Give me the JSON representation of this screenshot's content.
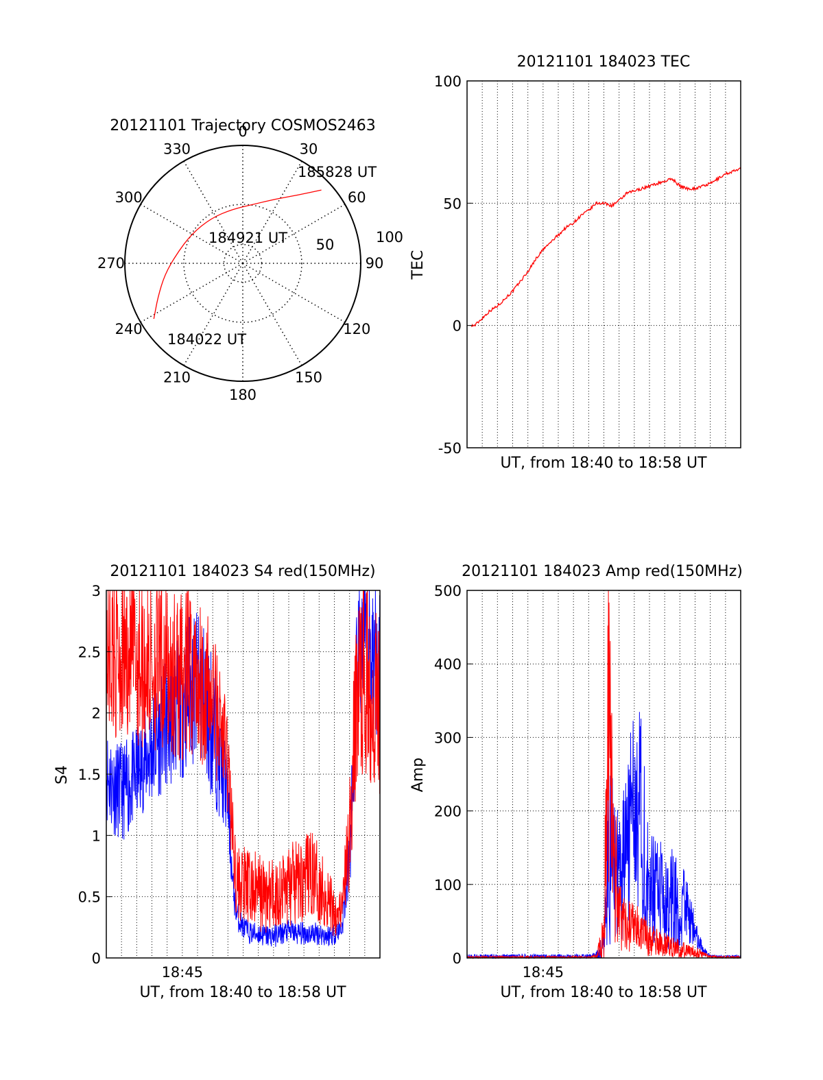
{
  "colors": {
    "red": "#ff0000",
    "blue": "#0000ff",
    "axis": "#000000",
    "grid": "#000000",
    "background": "#ffffff"
  },
  "chart_data": [
    {
      "id": "polar",
      "type": "polar-trajectory",
      "title": "20121101 Trajectory COSMOS2463",
      "azimuth_labels": [
        {
          "az": 0,
          "text": "0"
        },
        {
          "az": 30,
          "text": "30"
        },
        {
          "az": 60,
          "text": "60"
        },
        {
          "az": 90,
          "text": "90"
        },
        {
          "az": 120,
          "text": "120"
        },
        {
          "az": 150,
          "text": "150"
        },
        {
          "az": 180,
          "text": "180"
        },
        {
          "az": 210,
          "text": "210"
        },
        {
          "az": 240,
          "text": "240"
        },
        {
          "az": 270,
          "text": "270"
        },
        {
          "az": 300,
          "text": "300"
        },
        {
          "az": 330,
          "text": "330"
        }
      ],
      "ring_labels": [
        "50",
        "100"
      ],
      "grid": true,
      "series": [
        {
          "color": "#ff0000",
          "points_az_zen": [
            [
              238,
              80
            ],
            [
              248,
              70
            ],
            [
              262,
              60
            ],
            [
              278,
              51
            ],
            [
              300,
              45
            ],
            [
              325,
              42
            ],
            [
              349,
              42
            ],
            [
              11,
              46
            ],
            [
              27,
              55
            ],
            [
              39,
              67
            ],
            [
              47,
              82
            ]
          ]
        }
      ],
      "annotations": [
        {
          "text": "185828 UT",
          "az": 48,
          "zen": 82
        },
        {
          "text": "184921 UT",
          "az": 305,
          "zen": 20
        },
        {
          "text": "184022 UT",
          "az": 232,
          "zen": 82
        }
      ]
    },
    {
      "id": "tec",
      "type": "line",
      "title": "20121101 184023 TEC",
      "xlabel": "UT, from 18:40 to 18:58 UT",
      "ylabel": "TEC",
      "xlim_min": [
        40.0,
        58.0
      ],
      "ylim": [
        -50,
        100
      ],
      "yticks": [
        "-50",
        "0",
        "50",
        "100"
      ],
      "xticks": [],
      "grid": true,
      "series": [
        {
          "color": "#ff0000",
          "x_min": [
            40.3,
            40.5,
            41.0,
            41.5,
            42.0,
            42.5,
            43.0,
            43.5,
            44.0,
            44.5,
            45.0,
            45.5,
            46.0,
            46.5,
            47.0,
            47.5,
            48.0,
            48.5,
            49.0,
            49.5,
            50.0,
            50.5,
            51.0,
            51.5,
            52.0,
            52.5,
            53.0,
            53.5,
            54.0,
            54.5,
            55.0,
            55.5,
            56.0,
            56.5,
            57.0,
            57.5,
            58.0
          ],
          "y": [
            0,
            0,
            3,
            6,
            8,
            11,
            14,
            18,
            22,
            27,
            31,
            34,
            37,
            40,
            42,
            45,
            47,
            50,
            50,
            49,
            51,
            54,
            55,
            56,
            57,
            58,
            59,
            60,
            57,
            56,
            56,
            57,
            58,
            60,
            62,
            63,
            64
          ]
        }
      ]
    },
    {
      "id": "s4",
      "type": "line",
      "title": "20121101 184023 S4 red(150MHz)",
      "xlabel": "UT, from 18:40 to 18:58 UT",
      "ylabel": "S4",
      "xlim_min": [
        40.0,
        58.0
      ],
      "ylim": [
        0,
        3
      ],
      "yticks": [
        "0",
        "0.5",
        "1",
        "1.5",
        "2",
        "2.5",
        "3"
      ],
      "xticks": [
        {
          "x_min": 45,
          "text": "18:45"
        }
      ],
      "grid": true,
      "series": [
        {
          "color": "#0000ff",
          "x_min": [
            40.0,
            40.5,
            41.0,
            41.5,
            42.0,
            42.5,
            43.0,
            43.5,
            44.0,
            44.5,
            45.0,
            45.5,
            46.0,
            46.5,
            47.0,
            47.5,
            48.0,
            48.3,
            48.6,
            49.0,
            49.5,
            50.0,
            50.5,
            51.0,
            51.5,
            52.0,
            52.5,
            53.0,
            53.5,
            54.0,
            54.5,
            55.0,
            55.5,
            56.0,
            56.5,
            57.0,
            57.5,
            58.0
          ],
          "y": [
            1.5,
            1.4,
            1.35,
            1.4,
            1.5,
            1.6,
            1.7,
            1.8,
            1.9,
            2.0,
            2.1,
            2.2,
            2.2,
            2.1,
            1.9,
            1.6,
            1.3,
            0.6,
            0.35,
            0.25,
            0.2,
            0.2,
            0.18,
            0.18,
            0.2,
            0.22,
            0.2,
            0.2,
            0.2,
            0.2,
            0.18,
            0.2,
            0.25,
            0.8,
            2.3,
            2.6,
            2.5,
            2.4
          ],
          "amplitude": [
            0.25,
            0.25,
            0.25,
            0.25,
            0.25,
            0.25,
            0.3,
            0.3,
            0.35,
            0.35,
            0.4,
            0.4,
            0.4,
            0.4,
            0.4,
            0.3,
            0.2,
            0.1,
            0.08,
            0.06,
            0.06,
            0.06,
            0.06,
            0.06,
            0.06,
            0.06,
            0.06,
            0.06,
            0.06,
            0.06,
            0.06,
            0.06,
            0.06,
            0.2,
            0.4,
            0.4,
            0.4,
            0.4
          ]
        },
        {
          "color": "#ff0000",
          "x_min": [
            40.0,
            40.5,
            41.0,
            41.5,
            42.0,
            42.5,
            43.0,
            43.5,
            44.0,
            44.5,
            45.0,
            45.5,
            46.0,
            46.5,
            47.0,
            47.5,
            48.0,
            48.3,
            48.6,
            49.0,
            49.5,
            50.0,
            50.5,
            51.0,
            51.5,
            52.0,
            52.5,
            53.0,
            53.5,
            54.0,
            54.5,
            55.0,
            55.5,
            56.0,
            56.5,
            57.0,
            57.5,
            58.0
          ],
          "y": [
            2.5,
            2.5,
            2.5,
            2.5,
            2.45,
            2.4,
            2.4,
            2.4,
            2.35,
            2.3,
            2.3,
            2.3,
            2.3,
            2.2,
            2.1,
            1.9,
            1.6,
            1.0,
            0.6,
            0.6,
            0.55,
            0.55,
            0.5,
            0.5,
            0.55,
            0.6,
            0.6,
            0.65,
            0.7,
            0.6,
            0.5,
            0.4,
            0.4,
            1.0,
            2.2,
            2.3,
            2.2,
            2.1
          ],
          "amplitude": [
            0.45,
            0.45,
            0.45,
            0.45,
            0.45,
            0.45,
            0.45,
            0.45,
            0.45,
            0.45,
            0.45,
            0.45,
            0.45,
            0.4,
            0.4,
            0.3,
            0.3,
            0.2,
            0.2,
            0.2,
            0.2,
            0.2,
            0.2,
            0.2,
            0.2,
            0.22,
            0.22,
            0.22,
            0.22,
            0.2,
            0.2,
            0.15,
            0.1,
            0.3,
            0.5,
            0.5,
            0.5,
            0.5
          ]
        }
      ]
    },
    {
      "id": "amp",
      "type": "line",
      "title": "20121101 184023 Amp red(150MHz)",
      "xlabel": "UT, from 18:40 to 18:58 UT",
      "ylabel": "Amp",
      "xlim_min": [
        40.0,
        58.0
      ],
      "ylim": [
        0,
        500
      ],
      "yticks": [
        "0",
        "100",
        "200",
        "300",
        "400",
        "500"
      ],
      "xticks": [
        {
          "x_min": 45,
          "text": "18:45"
        }
      ],
      "grid": true,
      "series": [
        {
          "color": "#0000ff",
          "x_min": [
            40.0,
            41.0,
            42.0,
            43.0,
            44.0,
            45.0,
            46.0,
            47.0,
            48.0,
            48.5,
            49.0,
            49.3,
            49.6,
            50.0,
            50.5,
            51.0,
            51.5,
            52.0,
            52.5,
            53.0,
            53.5,
            54.0,
            54.5,
            55.0,
            55.5,
            56.0,
            56.5,
            57.0,
            58.0
          ],
          "y": [
            2,
            2,
            2,
            2,
            2,
            2,
            2,
            2,
            2,
            4,
            15,
            120,
            150,
            100,
            140,
            240,
            180,
            110,
            90,
            80,
            90,
            70,
            60,
            35,
            10,
            3,
            2,
            2,
            2
          ],
          "amplitude": [
            2,
            2,
            2,
            2,
            2,
            2,
            2,
            2,
            2,
            3,
            15,
            70,
            80,
            60,
            80,
            100,
            90,
            60,
            50,
            45,
            50,
            40,
            30,
            15,
            5,
            1,
            1,
            1,
            1
          ]
        },
        {
          "color": "#ff0000",
          "x_min": [
            40.0,
            41.0,
            42.0,
            43.0,
            44.0,
            45.0,
            46.0,
            47.0,
            48.0,
            48.5,
            49.0,
            49.3,
            49.6,
            50.0,
            50.5,
            51.0,
            51.5,
            52.0,
            52.5,
            53.0,
            53.5,
            54.0,
            54.5,
            55.0,
            55.5,
            56.0,
            56.5,
            57.0,
            58.0
          ],
          "y": [
            1,
            1,
            1,
            1,
            1,
            1,
            1,
            1,
            1,
            2,
            30,
            300,
            150,
            60,
            45,
            40,
            35,
            25,
            20,
            18,
            15,
            12,
            10,
            8,
            5,
            2,
            1,
            1,
            1
          ],
          "amplitude": [
            1,
            1,
            1,
            1,
            1,
            1,
            1,
            1,
            1,
            2,
            20,
            170,
            80,
            30,
            25,
            22,
            20,
            15,
            12,
            10,
            9,
            8,
            6,
            5,
            3,
            1,
            1,
            1,
            1
          ]
        }
      ]
    }
  ]
}
